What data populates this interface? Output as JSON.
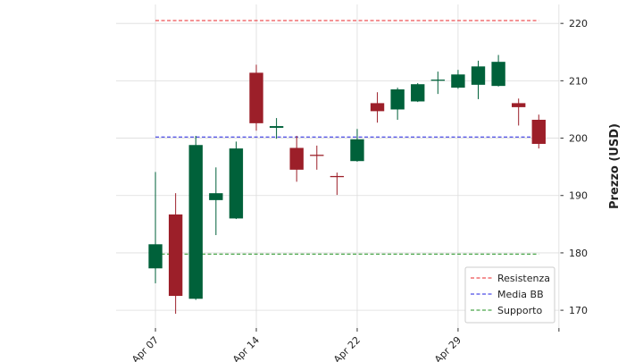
{
  "chart_data": {
    "type": "candlestick",
    "categories": [
      "Apr 07",
      null,
      null,
      null,
      null,
      "Apr 14",
      null,
      null,
      null,
      null,
      "Apr 22",
      null,
      null,
      null,
      null,
      "Apr 29",
      null,
      null,
      null,
      null
    ],
    "open": [
      177.3,
      186.7,
      172.0,
      189.2,
      186.0,
      211.4,
      201.8,
      198.3,
      197.1,
      193.4,
      196.0,
      206.1,
      205.0,
      206.4,
      210.0,
      208.8,
      209.3,
      209.1,
      206.1,
      203.2
    ],
    "high": [
      194.1,
      190.4,
      200.4,
      194.9,
      199.4,
      212.8,
      203.5,
      200.4,
      198.7,
      194.0,
      201.6,
      208.0,
      208.8,
      209.6,
      211.6,
      211.9,
      213.5,
      214.5,
      206.9,
      204.1
    ],
    "low": [
      174.7,
      169.4,
      171.8,
      183.1,
      185.9,
      201.3,
      199.9,
      192.4,
      194.5,
      190.1,
      195.9,
      202.7,
      203.2,
      206.3,
      207.7,
      208.6,
      206.8,
      209.0,
      202.2,
      198.2
    ],
    "close": [
      181.5,
      172.5,
      198.8,
      190.4,
      198.2,
      202.6,
      202.1,
      194.5,
      196.9,
      193.2,
      199.8,
      204.7,
      208.5,
      209.4,
      210.2,
      211.1,
      212.5,
      213.3,
      205.4,
      199.0
    ],
    "up_color": "#00613a",
    "down_color": "#9c1f29",
    "lines": [
      {
        "name": "Resistenza",
        "value": 220.5,
        "color": "#e8262a"
      },
      {
        "name": "Media BB",
        "value": 200.2,
        "color": "#2020e0"
      },
      {
        "name": "Supporto",
        "value": 179.8,
        "color": "#1c8f1c"
      }
    ],
    "y_label": "Prezzo (USD)",
    "ylim": [
      166.9,
      223.3
    ],
    "yticks": [
      170,
      180,
      190,
      200,
      210,
      220
    ],
    "grid": true,
    "legend": "lower right"
  }
}
